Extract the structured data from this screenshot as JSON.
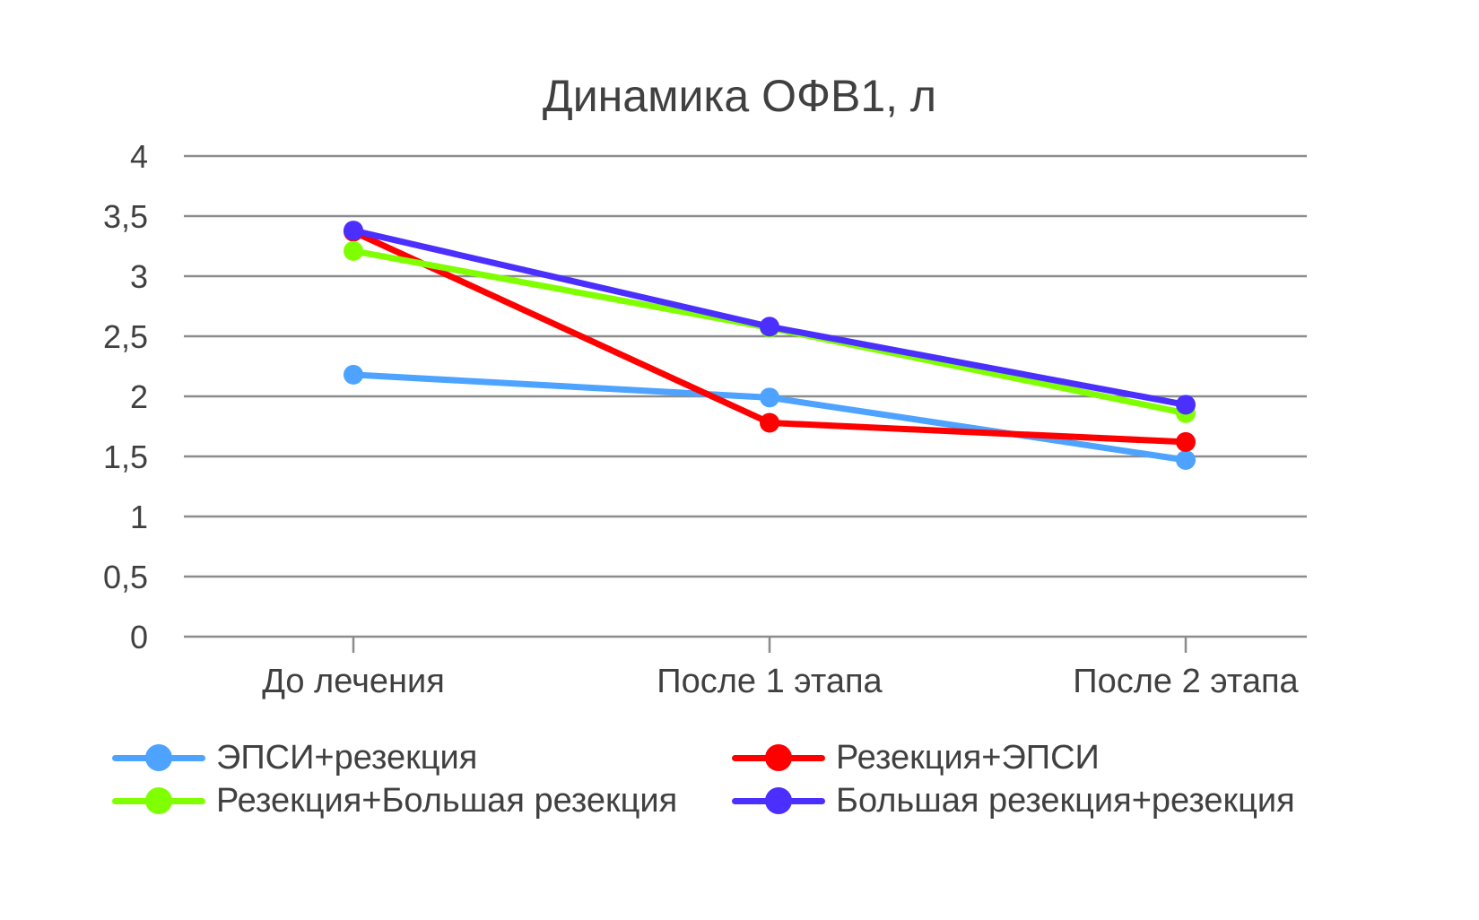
{
  "chart_data": {
    "type": "line",
    "title": "Динамика ОФВ1, л",
    "categories": [
      "До лечения",
      "После 1 этапа",
      "После 2 этапа"
    ],
    "ylim": [
      0,
      4
    ],
    "yticks": [
      "0",
      "0,5",
      "1",
      "1,5",
      "2",
      "2,5",
      "3",
      "3,5",
      "4"
    ],
    "grid": true,
    "legend_position": "bottom",
    "series": [
      {
        "name": "ЭПСИ+резекция",
        "color": "#4da3ff",
        "values": [
          2.18,
          1.99,
          1.47
        ]
      },
      {
        "name": "Резекция+ЭПСИ",
        "color": "#ff0000",
        "values": [
          3.37,
          1.78,
          1.62
        ]
      },
      {
        "name": "Резекция+Большая резекция",
        "color": "#7fff00",
        "values": [
          3.21,
          2.57,
          1.86
        ]
      },
      {
        "name": "Большая резекция+резекция",
        "color": "#4b2fff",
        "values": [
          3.38,
          2.58,
          1.93
        ]
      }
    ]
  }
}
